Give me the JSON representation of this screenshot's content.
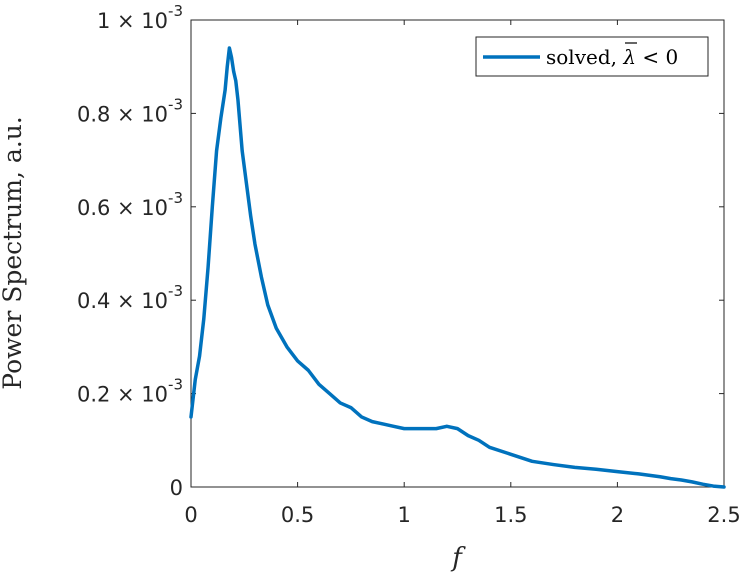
{
  "chart_data": {
    "type": "line",
    "xlabel": "f",
    "ylabel": "Power Spectrum, a.u.",
    "xlim": [
      0,
      2.5
    ],
    "ylim": [
      0,
      0.001
    ],
    "grid": false,
    "legend_position": "top-right",
    "x_ticks": [
      "0",
      "0.5",
      "1",
      "1.5",
      "2",
      "2.5"
    ],
    "x_tick_values": [
      0,
      0.5,
      1,
      1.5,
      2,
      2.5
    ],
    "y_tick_values": [
      0,
      0.0002,
      0.0004,
      0.0006,
      0.0008,
      0.001
    ],
    "y_ticks": [
      {
        "mantissa": "0",
        "times": "",
        "base": "",
        "exp": ""
      },
      {
        "mantissa": "0.2",
        "times": "×",
        "base": "10",
        "exp": "-3"
      },
      {
        "mantissa": "0.4",
        "times": "×",
        "base": "10",
        "exp": "-3"
      },
      {
        "mantissa": "0.6",
        "times": "×",
        "base": "10",
        "exp": "-3"
      },
      {
        "mantissa": "0.8",
        "times": "×",
        "base": "10",
        "exp": "-3"
      },
      {
        "mantissa": "1",
        "times": "×",
        "base": "10",
        "exp": "-3"
      }
    ],
    "series": [
      {
        "name": "solved, λ̄ < 0",
        "legend_text_prefix": "solved, ",
        "legend_symbol": "λ",
        "legend_text_suffix": " < 0",
        "color": "#0072BD",
        "x": [
          0,
          0.01,
          0.02,
          0.04,
          0.06,
          0.08,
          0.1,
          0.12,
          0.14,
          0.16,
          0.17,
          0.18,
          0.19,
          0.2,
          0.21,
          0.22,
          0.24,
          0.26,
          0.28,
          0.3,
          0.33,
          0.36,
          0.4,
          0.45,
          0.5,
          0.55,
          0.6,
          0.65,
          0.7,
          0.75,
          0.8,
          0.85,
          0.9,
          0.95,
          1.0,
          1.05,
          1.1,
          1.15,
          1.2,
          1.25,
          1.3,
          1.35,
          1.4,
          1.5,
          1.6,
          1.7,
          1.8,
          1.9,
          2.0,
          2.1,
          2.2,
          2.25,
          2.3,
          2.35,
          2.4,
          2.45,
          2.5
        ],
        "y": [
          0.00015,
          0.00019,
          0.00023,
          0.00028,
          0.00036,
          0.00047,
          0.0006,
          0.00072,
          0.00079,
          0.00085,
          0.0009,
          0.00094,
          0.00092,
          0.00089,
          0.00087,
          0.00083,
          0.00072,
          0.00065,
          0.00058,
          0.00052,
          0.00045,
          0.00039,
          0.00034,
          0.0003,
          0.00027,
          0.00025,
          0.00022,
          0.0002,
          0.00018,
          0.00017,
          0.00015,
          0.00014,
          0.000135,
          0.00013,
          0.000125,
          0.000125,
          0.000125,
          0.000125,
          0.00013,
          0.000125,
          0.00011,
          0.0001,
          8.5e-05,
          7e-05,
          5.5e-05,
          4.8e-05,
          4.2e-05,
          3.8e-05,
          3.3e-05,
          2.8e-05,
          2.2e-05,
          1.8e-05,
          1.5e-05,
          1.1e-05,
          6e-06,
          2e-06,
          0.0
        ]
      }
    ]
  }
}
